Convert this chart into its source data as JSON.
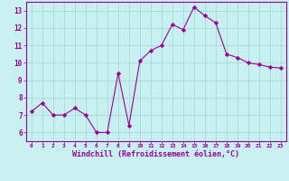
{
  "x": [
    0,
    1,
    2,
    3,
    4,
    5,
    6,
    7,
    8,
    9,
    10,
    11,
    12,
    13,
    14,
    15,
    16,
    17,
    18,
    19,
    20,
    21,
    22,
    23
  ],
  "y": [
    7.2,
    7.7,
    7.0,
    7.0,
    7.4,
    7.0,
    6.0,
    6.0,
    9.4,
    6.4,
    10.1,
    10.7,
    11.0,
    12.2,
    11.9,
    13.2,
    12.7,
    12.3,
    10.5,
    10.3,
    10.0,
    9.9,
    9.75,
    9.7
  ],
  "line_color": "#990099",
  "marker": "D",
  "marker_size": 2.2,
  "bg_color": "#c8f0f0",
  "grid_color": "#aadddd",
  "xlabel": "Windchill (Refroidissement éolien,°C)",
  "xlabel_color": "#990099",
  "tick_color": "#990099",
  "spine_color": "#990099",
  "xlim": [
    -0.5,
    23.5
  ],
  "ylim": [
    5.5,
    13.5
  ],
  "yticks": [
    6,
    7,
    8,
    9,
    10,
    11,
    12,
    13
  ],
  "xticks": [
    0,
    1,
    2,
    3,
    4,
    5,
    6,
    7,
    8,
    9,
    10,
    11,
    12,
    13,
    14,
    15,
    16,
    17,
    18,
    19,
    20,
    21,
    22,
    23
  ]
}
